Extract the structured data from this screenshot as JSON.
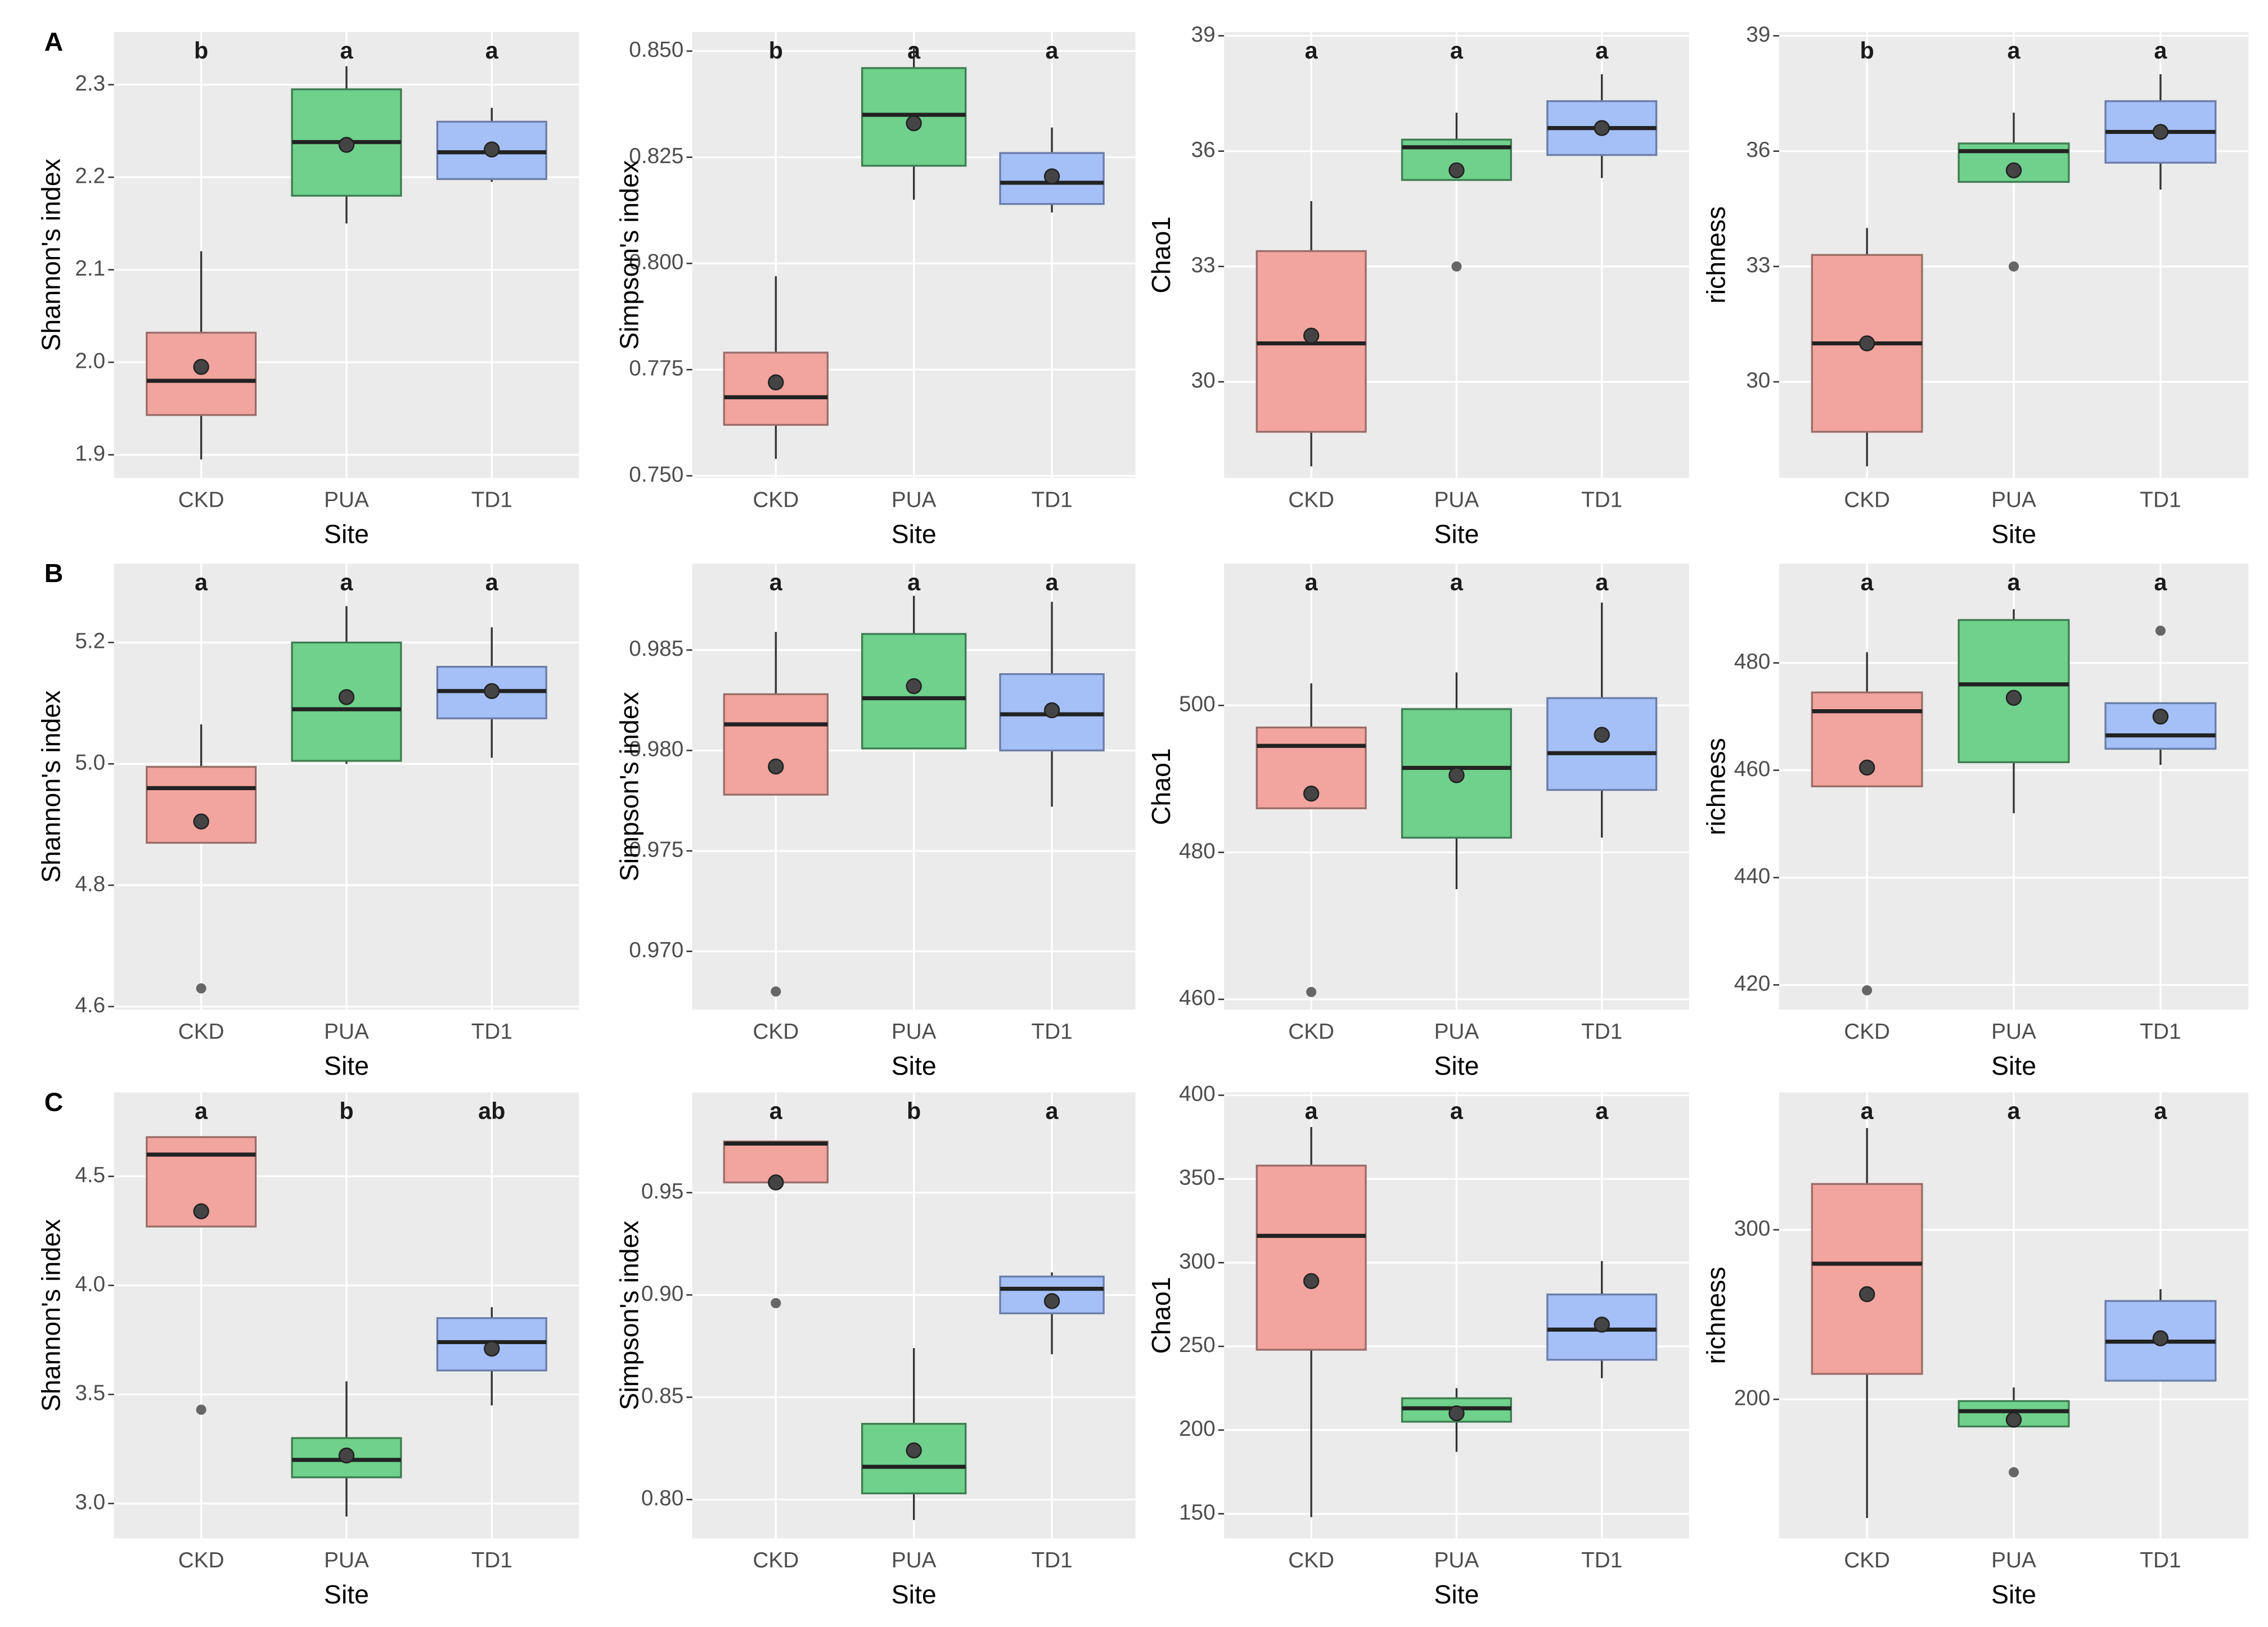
{
  "chart_data": [
    {
      "type": "box",
      "panel_label": "A",
      "xlabel": "Site",
      "ylabel": "Shannon's index",
      "categories": [
        "CKD",
        "PUA",
        "TD1"
      ],
      "colors": [
        "#f2a49e",
        "#6fd18b",
        "#a5bff7"
      ],
      "letters": [
        "b",
        "a",
        "a"
      ],
      "ylim": [
        1.875,
        2.357
      ],
      "yticks": [
        1.9,
        {
          "value": 2,
          "label": "2.0"
        },
        2.1,
        2.2,
        2.3
      ],
      "grid": true,
      "boxes": [
        {
          "whislo": 1.895,
          "q1": 1.943,
          "med": 1.98,
          "q3": 2.032,
          "whishi": 2.12,
          "mean": 1.995,
          "fliers": []
        },
        {
          "whislo": 2.15,
          "q1": 2.18,
          "med": 2.238,
          "q3": 2.295,
          "whishi": 2.32,
          "mean": 2.235,
          "fliers": []
        },
        {
          "whislo": 2.195,
          "q1": 2.198,
          "med": 2.227,
          "q3": 2.26,
          "whishi": 2.275,
          "mean": 2.23,
          "fliers": []
        }
      ]
    },
    {
      "type": "box",
      "xlabel": "Site",
      "ylabel": "Simpson's index",
      "categories": [
        "CKD",
        "PUA",
        "TD1"
      ],
      "colors": [
        "#f2a49e",
        "#6fd18b",
        "#a5bff7"
      ],
      "letters": [
        "b",
        "a",
        "a"
      ],
      "ylim": [
        0.7495,
        0.8545
      ],
      "yticks": [
        {
          "value": 0.75,
          "label": "0.750"
        },
        0.775,
        {
          "value": 0.8,
          "label": "0.800"
        },
        0.825,
        {
          "value": 0.85,
          "label": "0.850"
        }
      ],
      "grid": true,
      "boxes": [
        {
          "whislo": 0.754,
          "q1": 0.762,
          "med": 0.7685,
          "q3": 0.779,
          "whishi": 0.797,
          "mean": 0.772,
          "fliers": []
        },
        {
          "whislo": 0.815,
          "q1": 0.823,
          "med": 0.835,
          "q3": 0.846,
          "whishi": 0.851,
          "mean": 0.833,
          "fliers": []
        },
        {
          "whislo": 0.812,
          "q1": 0.814,
          "med": 0.819,
          "q3": 0.826,
          "whishi": 0.832,
          "mean": 0.8205,
          "fliers": []
        }
      ]
    },
    {
      "type": "box",
      "xlabel": "Site",
      "ylabel": "Chao1",
      "categories": [
        "CKD",
        "PUA",
        "TD1"
      ],
      "colors": [
        "#f2a49e",
        "#6fd18b",
        "#a5bff7"
      ],
      "letters": [
        "a",
        "a",
        "a"
      ],
      "ylim": [
        27.5,
        39.1
      ],
      "yticks": [
        30,
        33,
        36,
        39
      ],
      "grid": true,
      "boxes": [
        {
          "whislo": 27.8,
          "q1": 28.7,
          "med": 31,
          "q3": 33.4,
          "whishi": 34.7,
          "mean": 31.2,
          "fliers": []
        },
        {
          "whislo": 35.25,
          "q1": 35.25,
          "med": 36.1,
          "q3": 36.3,
          "whishi": 37,
          "mean": 35.5,
          "fliers": [
            33
          ]
        },
        {
          "whislo": 35.3,
          "q1": 35.9,
          "med": 36.6,
          "q3": 37.3,
          "whishi": 38,
          "mean": 36.6,
          "fliers": []
        }
      ]
    },
    {
      "type": "box",
      "xlabel": "Site",
      "ylabel": "richness",
      "categories": [
        "CKD",
        "PUA",
        "TD1"
      ],
      "colors": [
        "#f2a49e",
        "#6fd18b",
        "#a5bff7"
      ],
      "letters": [
        "b",
        "a",
        "a"
      ],
      "ylim": [
        27.5,
        39.1
      ],
      "yticks": [
        30,
        33,
        36,
        39
      ],
      "grid": true,
      "boxes": [
        {
          "whislo": 27.8,
          "q1": 28.7,
          "med": 31,
          "q3": 33.3,
          "whishi": 34,
          "mean": 31,
          "fliers": []
        },
        {
          "whislo": 35.2,
          "q1": 35.2,
          "med": 36,
          "q3": 36.2,
          "whishi": 37,
          "mean": 35.5,
          "fliers": [
            33
          ]
        },
        {
          "whislo": 35,
          "q1": 35.7,
          "med": 36.5,
          "q3": 37.3,
          "whishi": 38,
          "mean": 36.5,
          "fliers": []
        }
      ]
    },
    {
      "type": "box",
      "panel_label": "B",
      "xlabel": "Site",
      "ylabel": "Shannon's index",
      "categories": [
        "CKD",
        "PUA",
        "TD1"
      ],
      "colors": [
        "#f2a49e",
        "#6fd18b",
        "#a5bff7"
      ],
      "letters": [
        "a",
        "a",
        "a"
      ],
      "ylim": [
        4.595,
        5.33
      ],
      "yticks": [
        4.6,
        4.8,
        {
          "value": 5,
          "label": "5.0"
        },
        5.2
      ],
      "grid": true,
      "boxes": [
        {
          "whislo": 4.87,
          "q1": 4.87,
          "med": 4.96,
          "q3": 4.995,
          "whishi": 5.065,
          "mean": 4.905,
          "fliers": [
            4.63
          ]
        },
        {
          "whislo": 5,
          "q1": 5.005,
          "med": 5.09,
          "q3": 5.2,
          "whishi": 5.26,
          "mean": 5.11,
          "fliers": []
        },
        {
          "whislo": 5.01,
          "q1": 5.075,
          "med": 5.12,
          "q3": 5.16,
          "whishi": 5.225,
          "mean": 5.12,
          "fliers": []
        }
      ]
    },
    {
      "type": "box",
      "xlabel": "Site",
      "ylabel": "Simpson's index",
      "categories": [
        "CKD",
        "PUA",
        "TD1"
      ],
      "colors": [
        "#f2a49e",
        "#6fd18b",
        "#a5bff7"
      ],
      "letters": [
        "a",
        "a",
        "a"
      ],
      "ylim": [
        0.9671,
        0.9893
      ],
      "yticks": [
        {
          "value": 0.97,
          "label": "0.970"
        },
        0.975,
        {
          "value": 0.98,
          "label": "0.980"
        },
        0.985
      ],
      "grid": true,
      "boxes": [
        {
          "whislo": 0.9778,
          "q1": 0.9778,
          "med": 0.9813,
          "q3": 0.9828,
          "whishi": 0.9859,
          "mean": 0.9792,
          "fliers": [
            0.968
          ]
        },
        {
          "whislo": 0.9801,
          "q1": 0.9801,
          "med": 0.9826,
          "q3": 0.9858,
          "whishi": 0.9877,
          "mean": 0.9832,
          "fliers": []
        },
        {
          "whislo": 0.9772,
          "q1": 0.98,
          "med": 0.9818,
          "q3": 0.9838,
          "whishi": 0.9874,
          "mean": 0.982,
          "fliers": []
        }
      ]
    },
    {
      "type": "box",
      "xlabel": "Site",
      "ylabel": "Chao1",
      "categories": [
        "CKD",
        "PUA",
        "TD1"
      ],
      "colors": [
        "#f2a49e",
        "#6fd18b",
        "#a5bff7"
      ],
      "letters": [
        "a",
        "a",
        "a"
      ],
      "ylim": [
        458.6,
        519.3
      ],
      "yticks": [
        460,
        480,
        500
      ],
      "grid": true,
      "boxes": [
        {
          "whislo": 486,
          "q1": 486,
          "med": 494.5,
          "q3": 497,
          "whishi": 503,
          "mean": 488,
          "fliers": [
            461
          ]
        },
        {
          "whislo": 475,
          "q1": 482,
          "med": 491.5,
          "q3": 499.5,
          "whishi": 504.5,
          "mean": 490.5,
          "fliers": []
        },
        {
          "whislo": 482,
          "q1": 488.5,
          "med": 493.5,
          "q3": 501,
          "whishi": 514,
          "mean": 496,
          "fliers": []
        }
      ]
    },
    {
      "type": "box",
      "xlabel": "Site",
      "ylabel": "richness",
      "categories": [
        "CKD",
        "PUA",
        "TD1"
      ],
      "colors": [
        "#f2a49e",
        "#6fd18b",
        "#a5bff7"
      ],
      "letters": [
        "a",
        "a",
        "a"
      ],
      "ylim": [
        415.4,
        498.5
      ],
      "yticks": [
        420,
        440,
        460,
        480
      ],
      "grid": true,
      "boxes": [
        {
          "whislo": 457,
          "q1": 457,
          "med": 471,
          "q3": 474.5,
          "whishi": 482,
          "mean": 460.5,
          "fliers": [
            419
          ]
        },
        {
          "whislo": 452,
          "q1": 461.5,
          "med": 476,
          "q3": 488,
          "whishi": 490,
          "mean": 473.5,
          "fliers": []
        },
        {
          "whislo": 461,
          "q1": 464,
          "med": 466.5,
          "q3": 472.5,
          "whishi": 472.5,
          "mean": 470,
          "fliers": [
            486
          ]
        }
      ]
    },
    {
      "type": "box",
      "panel_label": "C",
      "xlabel": "Site",
      "ylabel": "Shannon's index",
      "categories": [
        "CKD",
        "PUA",
        "TD1"
      ],
      "colors": [
        "#f2a49e",
        "#6fd18b",
        "#a5bff7"
      ],
      "letters": [
        "a",
        "b",
        "ab"
      ],
      "ylim": [
        2.84,
        4.885
      ],
      "yticks": [
        {
          "value": 3,
          "label": "3.0"
        },
        3.5,
        {
          "value": 4,
          "label": "4.0"
        },
        4.5
      ],
      "grid": true,
      "boxes": [
        {
          "whislo": 4.27,
          "q1": 4.27,
          "med": 4.6,
          "q3": 4.68,
          "whishi": 4.68,
          "mean": 4.34,
          "fliers": [
            3.43
          ]
        },
        {
          "whislo": 2.94,
          "q1": 3.12,
          "med": 3.2,
          "q3": 3.3,
          "whishi": 3.56,
          "mean": 3.22,
          "fliers": []
        },
        {
          "whislo": 3.45,
          "q1": 3.61,
          "med": 3.74,
          "q3": 3.85,
          "whishi": 3.9,
          "mean": 3.71,
          "fliers": []
        }
      ]
    },
    {
      "type": "box",
      "xlabel": "Site",
      "ylabel": "Simpson's index",
      "categories": [
        "CKD",
        "PUA",
        "TD1"
      ],
      "colors": [
        "#f2a49e",
        "#6fd18b",
        "#a5bff7"
      ],
      "letters": [
        "a",
        "b",
        "a"
      ],
      "ylim": [
        0.781,
        0.999
      ],
      "yticks": [
        {
          "value": 0.8,
          "label": "0.80"
        },
        0.85,
        {
          "value": 0.9,
          "label": "0.90"
        },
        0.95
      ],
      "grid": true,
      "boxes": [
        {
          "whislo": 0.955,
          "q1": 0.955,
          "med": 0.974,
          "q3": 0.975,
          "whishi": 0.975,
          "mean": 0.955,
          "fliers": [
            0.896
          ]
        },
        {
          "whislo": 0.79,
          "q1": 0.803,
          "med": 0.816,
          "q3": 0.837,
          "whishi": 0.874,
          "mean": 0.824,
          "fliers": []
        },
        {
          "whislo": 0.871,
          "q1": 0.891,
          "med": 0.903,
          "q3": 0.909,
          "whishi": 0.911,
          "mean": 0.897,
          "fliers": []
        }
      ]
    },
    {
      "type": "box",
      "xlabel": "Site",
      "ylabel": "Chao1",
      "categories": [
        "CKD",
        "PUA",
        "TD1"
      ],
      "colors": [
        "#f2a49e",
        "#6fd18b",
        "#a5bff7"
      ],
      "letters": [
        "a",
        "a",
        "a"
      ],
      "ylim": [
        135.3,
        401.7
      ],
      "yticks": [
        150,
        200,
        250,
        300,
        350,
        400
      ],
      "grid": true,
      "boxes": [
        {
          "whislo": 148,
          "q1": 248,
          "med": 316,
          "q3": 358,
          "whishi": 381,
          "mean": 289,
          "fliers": []
        },
        {
          "whislo": 187,
          "q1": 205,
          "med": 213,
          "q3": 219,
          "whishi": 225,
          "mean": 210,
          "fliers": []
        },
        {
          "whislo": 231,
          "q1": 242,
          "med": 260,
          "q3": 281,
          "whishi": 301,
          "mean": 263,
          "fliers": []
        }
      ]
    },
    {
      "type": "box",
      "xlabel": "Site",
      "ylabel": "richness",
      "categories": [
        "CKD",
        "PUA",
        "TD1"
      ],
      "colors": [
        "#f2a49e",
        "#6fd18b",
        "#a5bff7"
      ],
      "letters": [
        "a",
        "a",
        "a"
      ],
      "ylim": [
        118,
        381
      ],
      "yticks": [
        200,
        300
      ],
      "grid": true,
      "boxes": [
        {
          "whislo": 130,
          "q1": 215,
          "med": 280,
          "q3": 327,
          "whishi": 360,
          "mean": 262,
          "fliers": []
        },
        {
          "whislo": 184,
          "q1": 184,
          "med": 193,
          "q3": 199,
          "whishi": 207,
          "mean": 188,
          "fliers": [
            157
          ]
        },
        {
          "whislo": 211,
          "q1": 211,
          "med": 234,
          "q3": 258,
          "whishi": 265,
          "mean": 236,
          "fliers": []
        }
      ]
    }
  ]
}
